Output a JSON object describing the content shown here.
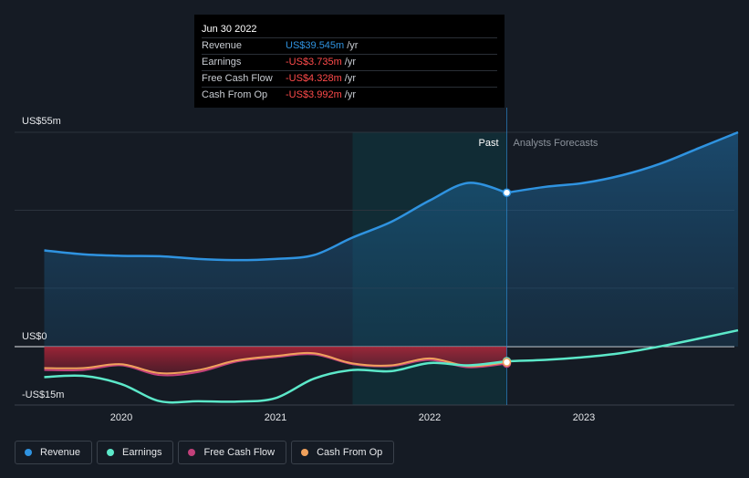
{
  "chart_data": {
    "type": "line",
    "title": "",
    "y_unit_prefix": "US$",
    "ylim": [
      -15,
      55
    ],
    "y_labels": [
      {
        "value": 55,
        "label": "US$55m"
      },
      {
        "value": 0,
        "label": "US$0"
      },
      {
        "value": -15,
        "label": "-US$15m"
      }
    ],
    "x_ticks": [
      {
        "value": 2020.0,
        "label": "2020"
      },
      {
        "value": 2021.0,
        "label": "2021"
      },
      {
        "value": 2022.0,
        "label": "2022"
      },
      {
        "value": 2023.0,
        "label": "2023"
      }
    ],
    "xlim": [
      2019.3,
      2024.0
    ],
    "past_region_start": 2021.5,
    "forecast_start": 2022.5,
    "past_label": "Past",
    "forecast_label": "Analysts Forecasts",
    "series": [
      {
        "name": "Revenue",
        "color": "#2f93e0",
        "x": [
          2019.5,
          2019.75,
          2020.0,
          2020.25,
          2020.5,
          2020.75,
          2021.0,
          2021.25,
          2021.5,
          2021.75,
          2022.0,
          2022.25,
          2022.5
        ],
        "values": [
          24.7,
          23.7,
          23.3,
          23.2,
          22.5,
          22.2,
          22.5,
          23.5,
          28.0,
          32.0,
          37.5,
          42.0,
          39.5
        ]
      },
      {
        "name": "Revenue forecast",
        "color": "#2f93e0",
        "x": [
          2022.5,
          2022.75,
          2023.0,
          2023.25,
          2023.5,
          2023.75,
          2024.0
        ],
        "values": [
          39.5,
          41.0,
          42.0,
          44.0,
          47.0,
          51.0,
          55.0
        ]
      },
      {
        "name": "Earnings",
        "color": "#5ce8c9",
        "x": [
          2019.5,
          2019.75,
          2020.0,
          2020.25,
          2020.5,
          2020.75,
          2021.0,
          2021.25,
          2021.5,
          2021.75,
          2022.0,
          2022.25,
          2022.5
        ],
        "values": [
          -7.8,
          -7.5,
          -9.6,
          -14.0,
          -14.0,
          -14.1,
          -13.2,
          -8.2,
          -6.0,
          -6.3,
          -4.2,
          -4.8,
          -3.735
        ]
      },
      {
        "name": "Earnings forecast",
        "color": "#5ce8c9",
        "x": [
          2022.5,
          2022.75,
          2023.0,
          2023.25,
          2023.5,
          2023.75,
          2024.0
        ],
        "values": [
          -3.735,
          -3.4,
          -2.7,
          -1.6,
          0.1,
          2.1,
          4.2
        ]
      },
      {
        "name": "Free Cash Flow",
        "color": "#c2407a",
        "x": [
          2019.5,
          2019.75,
          2020.0,
          2020.25,
          2020.5,
          2020.75,
          2021.0,
          2021.25,
          2021.5,
          2021.75,
          2022.0,
          2022.25,
          2022.5
        ],
        "values": [
          -6.0,
          -6.0,
          -4.8,
          -7.3,
          -6.5,
          -3.8,
          -2.7,
          -2.0,
          -4.5,
          -5.0,
          -3.4,
          -5.3,
          -4.328
        ]
      },
      {
        "name": "Cash From Op",
        "color": "#f0a15c",
        "x": [
          2019.5,
          2019.75,
          2020.0,
          2020.25,
          2020.5,
          2020.75,
          2021.0,
          2021.25,
          2021.5,
          2021.75,
          2022.0,
          2022.25,
          2022.5
        ],
        "values": [
          -5.5,
          -5.5,
          -4.5,
          -6.8,
          -6.0,
          -3.5,
          -2.4,
          -1.7,
          -4.3,
          -4.8,
          -3.0,
          -5.0,
          -3.992
        ]
      }
    ]
  },
  "tooltip": {
    "date": "Jun 30 2022",
    "rows": [
      {
        "label": "Revenue",
        "value": "US$39.545m",
        "unit": "/yr",
        "color": "#2f93e0"
      },
      {
        "label": "Earnings",
        "value": "-US$3.735m",
        "unit": "/yr",
        "color": "#ff4b4b"
      },
      {
        "label": "Free Cash Flow",
        "value": "-US$4.328m",
        "unit": "/yr",
        "color": "#ff4b4b"
      },
      {
        "label": "Cash From Op",
        "value": "-US$3.992m",
        "unit": "/yr",
        "color": "#ff4b4b"
      }
    ]
  },
  "legend": [
    {
      "label": "Revenue",
      "color": "#2f93e0"
    },
    {
      "label": "Earnings",
      "color": "#5ce8c9"
    },
    {
      "label": "Free Cash Flow",
      "color": "#c2407a"
    },
    {
      "label": "Cash From Op",
      "color": "#f0a15c"
    }
  ]
}
